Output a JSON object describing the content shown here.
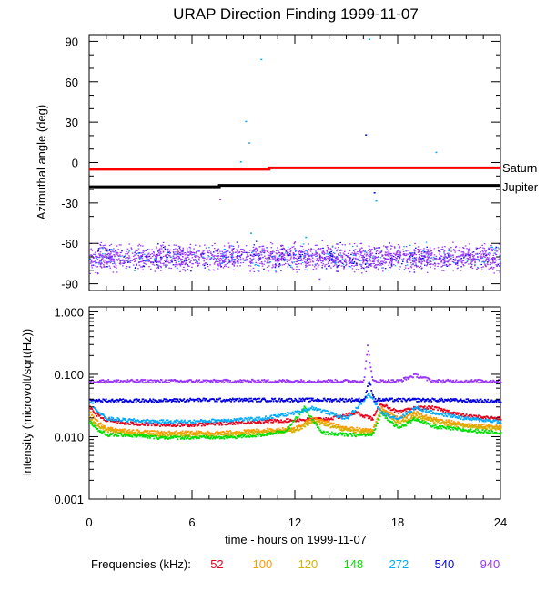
{
  "title": "URAP Direction Finding  1999-11-07",
  "xlabel": "time - hours on 1999-11-07",
  "legend": {
    "label": "Frequencies (kHz):",
    "items": [
      {
        "text": "52",
        "color": "#e8001a"
      },
      {
        "text": "100",
        "color": "#ff9900"
      },
      {
        "text": "120",
        "color": "#d4b000"
      },
      {
        "text": "148",
        "color": "#00e000"
      },
      {
        "text": "272",
        "color": "#00aaff"
      },
      {
        "text": "540",
        "color": "#0000e0"
      },
      {
        "text": "940",
        "color": "#9933ff"
      }
    ]
  },
  "chart_data": [
    {
      "type": "scatter",
      "ylabel": "Azimuthal angle (deg)",
      "xlim": [
        0,
        24
      ],
      "ylim": [
        -95,
        95
      ],
      "x_ticks": [
        "0",
        "6",
        "12",
        "18",
        "24"
      ],
      "y_ticks": [
        "90",
        "60",
        "30",
        "0",
        "-30",
        "-60",
        "-90"
      ],
      "planet_lines": [
        {
          "name": "Saturn",
          "color": "#ff0000",
          "x": [
            0,
            10.5,
            10.5,
            24
          ],
          "y": [
            -5,
            -5,
            -4,
            -4
          ]
        },
        {
          "name": "Jupiter",
          "color": "#000000",
          "x": [
            0,
            7.6,
            7.6,
            24
          ],
          "y": [
            -18,
            -18,
            -17,
            -17
          ]
        }
      ],
      "band": {
        "center": -70,
        "spread": 9,
        "colors": [
          "#9933ff",
          "#0000e0",
          "#00aaff"
        ]
      },
      "outliers": [
        {
          "x": 10.0,
          "y": 77,
          "color": "#00aaff"
        },
        {
          "x": 9.1,
          "y": 31,
          "color": "#00aaff"
        },
        {
          "x": 9.3,
          "y": 15,
          "color": "#00aaff"
        },
        {
          "x": 8.8,
          "y": 1,
          "color": "#00aaff"
        },
        {
          "x": 7.6,
          "y": -27,
          "color": "#9933ff"
        },
        {
          "x": 9.4,
          "y": -52,
          "color": "#00aaff"
        },
        {
          "x": 16.1,
          "y": 21,
          "color": "#0000e0"
        },
        {
          "x": 16.3,
          "y": 92,
          "color": "#00aaff"
        },
        {
          "x": 16.6,
          "y": -22,
          "color": "#0000e0"
        },
        {
          "x": 16.7,
          "y": -28,
          "color": "#00aaff"
        },
        {
          "x": 20.2,
          "y": 8,
          "color": "#00aaff"
        },
        {
          "x": 5.9,
          "y": -17,
          "color": "#00aaff"
        },
        {
          "x": 12.6,
          "y": -55,
          "color": "#00aaff"
        },
        {
          "x": 14.4,
          "y": -60,
          "color": "#9933ff"
        },
        {
          "x": 13.4,
          "y": -86,
          "color": "#9933ff"
        }
      ]
    },
    {
      "type": "scatter",
      "ylabel": "Intensity (microvolt/sqrt(Hz))",
      "xlim": [
        0,
        24
      ],
      "ylim": [
        0.001,
        1.2
      ],
      "log_y": true,
      "x_ticks": [
        "0",
        "6",
        "12",
        "18",
        "24"
      ],
      "y_ticks": [
        {
          "value": 1.0,
          "label": "1.000"
        },
        {
          "value": 0.1,
          "label": "0.100"
        },
        {
          "value": 0.01,
          "label": "0.010"
        },
        {
          "value": 0.001,
          "label": "0.001"
        }
      ],
      "series": [
        {
          "name": "52",
          "color": "#e8001a",
          "x": [
            0,
            0.5,
            1,
            2,
            4,
            6,
            8,
            10,
            12,
            14,
            15.5,
            16.5,
            17,
            18,
            19,
            20,
            22,
            24
          ],
          "y": [
            0.03,
            0.022,
            0.019,
            0.017,
            0.016,
            0.016,
            0.017,
            0.018,
            0.019,
            0.02,
            0.025,
            0.02,
            0.035,
            0.025,
            0.03,
            0.03,
            0.022,
            0.02
          ]
        },
        {
          "name": "100",
          "color": "#ff9900",
          "x": [
            0,
            0.5,
            1,
            2,
            4,
            6,
            8,
            10,
            12,
            13,
            15,
            16.5,
            17,
            18,
            19,
            20,
            22,
            24
          ],
          "y": [
            0.025,
            0.017,
            0.014,
            0.013,
            0.012,
            0.012,
            0.012,
            0.013,
            0.014,
            0.02,
            0.014,
            0.013,
            0.03,
            0.02,
            0.025,
            0.02,
            0.016,
            0.015
          ]
        },
        {
          "name": "120",
          "color": "#d4b000",
          "x": [
            0,
            0.5,
            1,
            2,
            4,
            6,
            8,
            10,
            12,
            13,
            15,
            16.5,
            17,
            18,
            19,
            20,
            22,
            24
          ],
          "y": [
            0.02,
            0.015,
            0.013,
            0.012,
            0.011,
            0.011,
            0.011,
            0.012,
            0.013,
            0.018,
            0.013,
            0.012,
            0.028,
            0.017,
            0.022,
            0.018,
            0.015,
            0.014
          ]
        },
        {
          "name": "148",
          "color": "#00e000",
          "x": [
            0,
            0.5,
            1,
            2,
            4,
            6,
            8,
            10,
            11.5,
            12.5,
            13.5,
            15,
            16.5,
            17,
            18,
            19,
            20,
            22,
            24
          ],
          "y": [
            0.018,
            0.013,
            0.011,
            0.011,
            0.01,
            0.01,
            0.01,
            0.011,
            0.013,
            0.03,
            0.012,
            0.011,
            0.011,
            0.025,
            0.014,
            0.02,
            0.015,
            0.013,
            0.012
          ]
        },
        {
          "name": "272",
          "color": "#00aaff",
          "x": [
            0,
            0.5,
            1,
            2,
            4,
            6,
            8,
            10,
            12,
            13,
            15,
            16.3,
            17,
            18,
            19,
            20,
            22,
            24
          ],
          "y": [
            0.04,
            0.025,
            0.02,
            0.019,
            0.018,
            0.018,
            0.019,
            0.02,
            0.025,
            0.03,
            0.02,
            0.05,
            0.025,
            0.02,
            0.03,
            0.025,
            0.02,
            0.018
          ]
        },
        {
          "name": "540",
          "color": "#0000e0",
          "x": [
            0,
            2,
            4,
            6,
            8,
            10,
            12,
            14,
            16,
            16.3,
            16.6,
            18,
            20,
            22,
            24
          ],
          "y": [
            0.039,
            0.039,
            0.039,
            0.04,
            0.04,
            0.04,
            0.04,
            0.04,
            0.04,
            0.08,
            0.04,
            0.04,
            0.04,
            0.039,
            0.038
          ]
        },
        {
          "name": "940",
          "color": "#9933ff",
          "x": [
            0,
            2,
            4,
            6,
            8,
            10,
            12,
            14,
            16,
            16.2,
            16.5,
            18,
            19,
            20,
            22,
            24
          ],
          "y": [
            0.08,
            0.08,
            0.08,
            0.08,
            0.08,
            0.08,
            0.08,
            0.08,
            0.08,
            0.3,
            0.08,
            0.08,
            0.1,
            0.08,
            0.08,
            0.08
          ]
        }
      ]
    }
  ]
}
